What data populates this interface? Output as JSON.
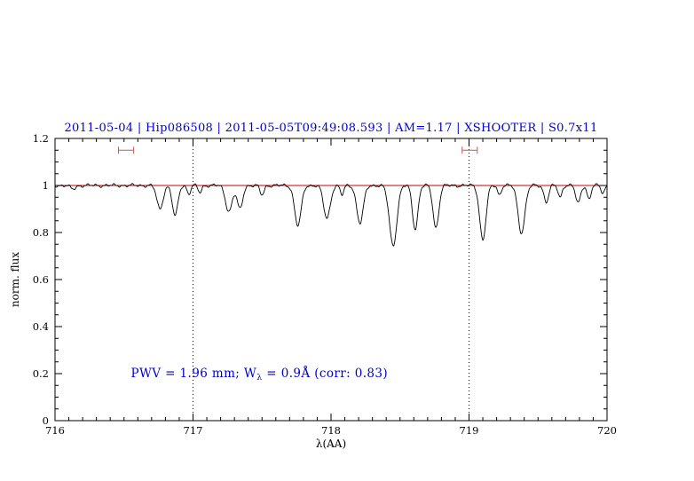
{
  "title": "2011-05-04 | Hip086508 | 2011-05-05T09:49:08.593 | AM=1.17 | XSHOOTER | S0.7x11",
  "chart_data": {
    "type": "line",
    "title": "2011-05-04 | Hip086508 | 2011-05-05T09:49:08.593 | AM=1.17 | XSHOOTER | S0.7x11",
    "xlabel": "λ(AA)",
    "ylabel": "norm. flux",
    "xlim": [
      716,
      720
    ],
    "ylim": [
      0,
      1.2
    ],
    "xticks": [
      716,
      717,
      718,
      719,
      720
    ],
    "xtick_labels": [
      "716",
      "717",
      "718",
      "719",
      "720"
    ],
    "yticks": [
      0,
      0.2,
      0.4,
      0.6,
      0.8,
      1,
      1.2
    ],
    "ytick_labels": [
      "0",
      "0.2",
      "0.4",
      "0.6",
      "0.8",
      "1",
      "1.2"
    ],
    "minor_x_step": 0.1,
    "minor_y_step": 0.05,
    "grid": false,
    "colors": {
      "title": "#0000cc",
      "annotation": "#0000cc",
      "continuum": "#cc0000",
      "marker": "#cc5555",
      "spectrum": "#000000",
      "vline": "#000000",
      "frame": "#000000"
    },
    "continuum": {
      "y": 1.0
    },
    "vlines": {
      "x": [
        717,
        719
      ],
      "style": "dotted"
    },
    "spectrum": {
      "continuum_level": 1.0,
      "noise_amplitude": 0.004,
      "absorption_lines": [
        [
          716.13,
          0.015,
          0.02
        ],
        [
          716.76,
          0.1,
          0.022
        ],
        [
          716.87,
          0.13,
          0.02
        ],
        [
          716.97,
          0.035,
          0.013
        ],
        [
          717.05,
          0.03,
          0.013
        ],
        [
          717.26,
          0.11,
          0.024
        ],
        [
          717.34,
          0.1,
          0.02
        ],
        [
          717.5,
          0.04,
          0.015
        ],
        [
          717.76,
          0.17,
          0.024
        ],
        [
          717.97,
          0.14,
          0.024
        ],
        [
          718.08,
          0.04,
          0.013
        ],
        [
          718.21,
          0.16,
          0.024
        ],
        [
          718.45,
          0.255,
          0.027
        ],
        [
          718.61,
          0.185,
          0.02
        ],
        [
          718.76,
          0.18,
          0.021
        ],
        [
          719.1,
          0.23,
          0.023
        ],
        [
          719.22,
          0.04,
          0.013
        ],
        [
          719.38,
          0.2,
          0.025
        ],
        [
          719.56,
          0.07,
          0.017
        ],
        [
          719.66,
          0.05,
          0.014
        ],
        [
          719.79,
          0.075,
          0.017
        ],
        [
          719.87,
          0.06,
          0.014
        ],
        [
          719.97,
          0.03,
          0.013
        ]
      ]
    },
    "range_markers": {
      "y": 1.15,
      "intervals": [
        [
          716.46,
          716.57
        ],
        [
          718.95,
          719.06
        ]
      ]
    },
    "annotation": {
      "x": 716.55,
      "y": 0.2,
      "pre": "PWV = 1.96 mm; W",
      "sub": "λ",
      "post": " = 0.9Å (corr: 0.83)"
    }
  }
}
